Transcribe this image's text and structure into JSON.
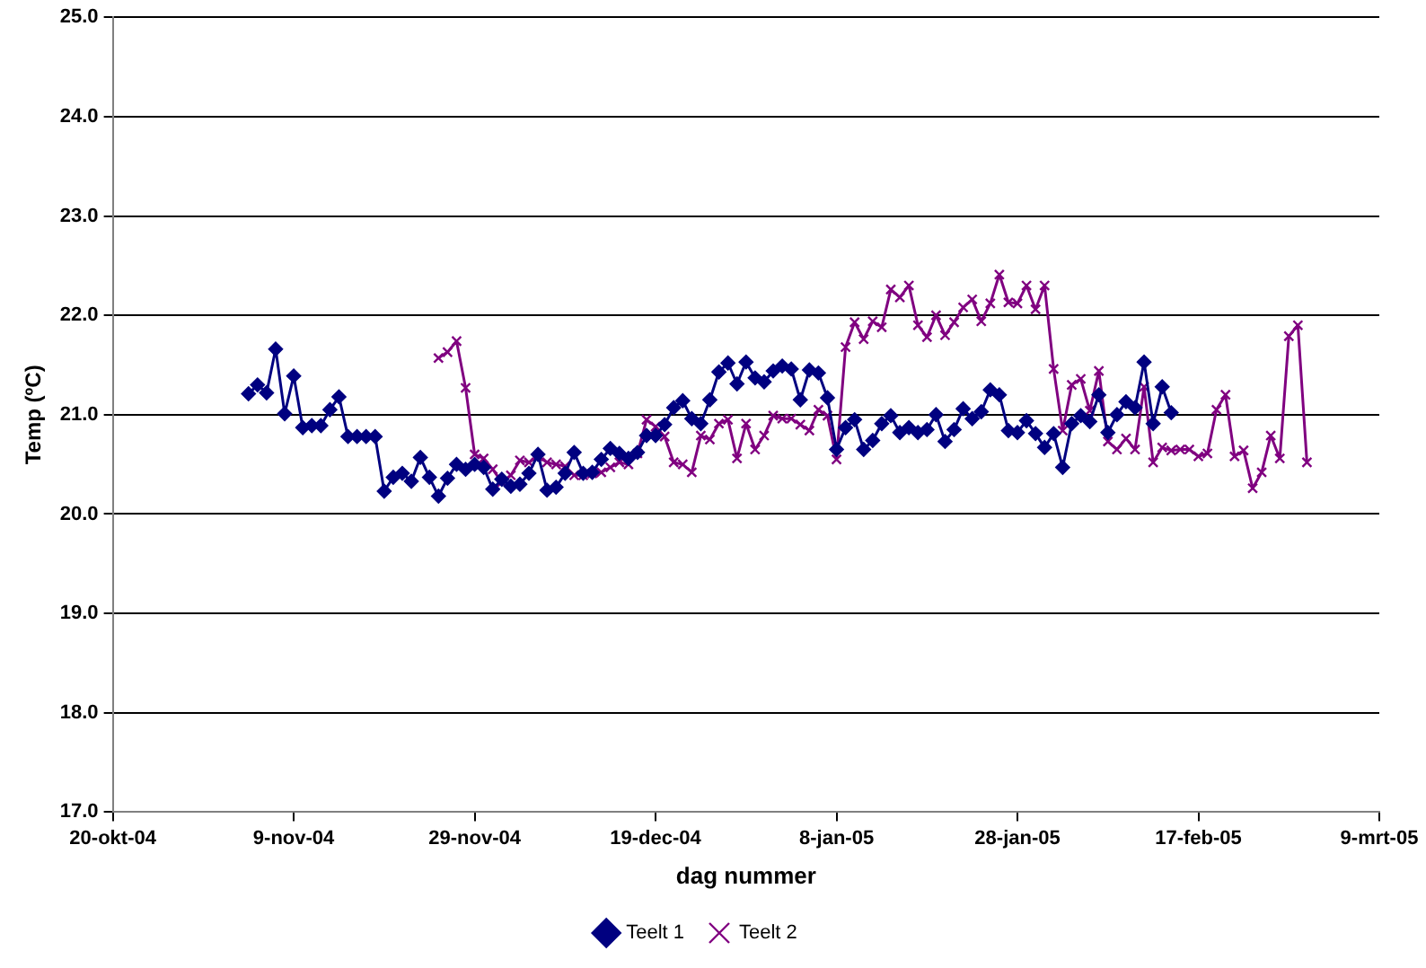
{
  "chart_data": {
    "type": "line",
    "xlabel": "dag nummer",
    "ylabel": "Temp (ºC)",
    "xlim": [
      "2004-10-20",
      "2005-03-09"
    ],
    "xticks": [
      {
        "value": "2004-10-20",
        "label": "20-okt-04"
      },
      {
        "value": "2004-11-09",
        "label": "9-nov-04"
      },
      {
        "value": "2004-11-29",
        "label": "29-nov-04"
      },
      {
        "value": "2004-12-19",
        "label": "19-dec-04"
      },
      {
        "value": "2005-01-08",
        "label": "8-jan-05"
      },
      {
        "value": "2005-01-28",
        "label": "28-jan-05"
      },
      {
        "value": "2005-02-17",
        "label": "17-feb-05"
      },
      {
        "value": "2005-03-09",
        "label": "9-mrt-05"
      }
    ],
    "ylim": [
      17,
      25
    ],
    "yticks": [
      {
        "value": 17,
        "label": "17.0"
      },
      {
        "value": 18,
        "label": "18.0"
      },
      {
        "value": 19,
        "label": "19.0"
      },
      {
        "value": 20,
        "label": "20.0"
      },
      {
        "value": 21,
        "label": "21.0"
      },
      {
        "value": 22,
        "label": "22.0"
      },
      {
        "value": 23,
        "label": "23.0"
      },
      {
        "value": 24,
        "label": "24.0"
      },
      {
        "value": 25,
        "label": "25.0"
      }
    ],
    "grid": "y",
    "legend": "bottom",
    "line_style": "solid",
    "series": [
      {
        "name": "Teelt 1",
        "color": "#000080",
        "marker": "diamond",
        "x": [
          "2004-11-04",
          "2004-11-05",
          "2004-11-06",
          "2004-11-07",
          "2004-11-08",
          "2004-11-09",
          "2004-11-10",
          "2004-11-11",
          "2004-11-12",
          "2004-11-13",
          "2004-11-14",
          "2004-11-15",
          "2004-11-16",
          "2004-11-17",
          "2004-11-18",
          "2004-11-19",
          "2004-11-20",
          "2004-11-21",
          "2004-11-22",
          "2004-11-23",
          "2004-11-24",
          "2004-11-25",
          "2004-11-26",
          "2004-11-27",
          "2004-11-28",
          "2004-11-29",
          "2004-11-30",
          "2004-12-01",
          "2004-12-02",
          "2004-12-03",
          "2004-12-04",
          "2004-12-05",
          "2004-12-06",
          "2004-12-07",
          "2004-12-08",
          "2004-12-09",
          "2004-12-10",
          "2004-12-11",
          "2004-12-12",
          "2004-12-13",
          "2004-12-14",
          "2004-12-15",
          "2004-12-16",
          "2004-12-17",
          "2004-12-18",
          "2004-12-19",
          "2004-12-20",
          "2004-12-21",
          "2004-12-22",
          "2004-12-23",
          "2004-12-24",
          "2004-12-25",
          "2004-12-26",
          "2004-12-27",
          "2004-12-28",
          "2004-12-29",
          "2004-12-30",
          "2004-12-31",
          "2005-01-01",
          "2005-01-02",
          "2005-01-03",
          "2005-01-04",
          "2005-01-05",
          "2005-01-06",
          "2005-01-07",
          "2005-01-08",
          "2005-01-09",
          "2005-01-10",
          "2005-01-11",
          "2005-01-12",
          "2005-01-13",
          "2005-01-14",
          "2005-01-15",
          "2005-01-16",
          "2005-01-17",
          "2005-01-18",
          "2005-01-19",
          "2005-01-20",
          "2005-01-21",
          "2005-01-22",
          "2005-01-23",
          "2005-01-24",
          "2005-01-25",
          "2005-01-26",
          "2005-01-27",
          "2005-01-28",
          "2005-01-29",
          "2005-01-30",
          "2005-01-31",
          "2005-02-01",
          "2005-02-02",
          "2005-02-03",
          "2005-02-04",
          "2005-02-05",
          "2005-02-06",
          "2005-02-07",
          "2005-02-08",
          "2005-02-09",
          "2005-02-10",
          "2005-02-11",
          "2005-02-12",
          "2005-02-13",
          "2005-02-14"
        ],
        "values": [
          21.21,
          21.3,
          21.22,
          21.66,
          21.01,
          21.39,
          20.87,
          20.89,
          20.89,
          21.05,
          21.18,
          20.78,
          20.78,
          20.78,
          20.78,
          20.23,
          20.37,
          20.41,
          20.33,
          20.57,
          20.37,
          20.18,
          20.36,
          20.5,
          20.45,
          20.5,
          20.47,
          20.25,
          20.35,
          20.28,
          20.3,
          20.41,
          20.6,
          20.24,
          20.27,
          20.41,
          20.62,
          20.41,
          20.42,
          20.55,
          20.66,
          20.61,
          20.56,
          20.62,
          20.79,
          20.79,
          20.9,
          21.07,
          21.14,
          20.96,
          20.91,
          21.15,
          21.43,
          21.52,
          21.31,
          21.53,
          21.37,
          21.33,
          21.44,
          21.49,
          21.46,
          21.15,
          21.45,
          21.42,
          21.17,
          20.65,
          20.87,
          20.95,
          20.65,
          20.74,
          20.91,
          20.99,
          20.82,
          20.87,
          20.82,
          20.85,
          21.0,
          20.73,
          20.85,
          21.06,
          20.96,
          21.03,
          21.25,
          21.2,
          20.84,
          20.82,
          20.94,
          20.81,
          20.67,
          20.81,
          20.47,
          20.91,
          20.99,
          20.93,
          21.2,
          20.82,
          21.0,
          21.13,
          21.07,
          21.53,
          20.91,
          21.28,
          21.02
        ]
      },
      {
        "name": "Teelt 2",
        "color": "#800080",
        "marker": "cross",
        "x": [
          "2004-11-25",
          "2004-11-26",
          "2004-11-27",
          "2004-11-28",
          "2004-11-29",
          "2004-11-30",
          "2004-12-01",
          "2004-12-02",
          "2004-12-03",
          "2004-12-04",
          "2004-12-05",
          "2004-12-06",
          "2004-12-07",
          "2004-12-08",
          "2004-12-09",
          "2004-12-10",
          "2004-12-11",
          "2004-12-12",
          "2004-12-13",
          "2004-12-14",
          "2004-12-15",
          "2004-12-16",
          "2004-12-17",
          "2004-12-18",
          "2004-12-19",
          "2004-12-20",
          "2004-12-21",
          "2004-12-22",
          "2004-12-23",
          "2004-12-24",
          "2004-12-25",
          "2004-12-26",
          "2004-12-27",
          "2004-12-28",
          "2004-12-29",
          "2004-12-30",
          "2004-12-31",
          "2005-01-01",
          "2005-01-02",
          "2005-01-03",
          "2005-01-04",
          "2005-01-05",
          "2005-01-06",
          "2005-01-07",
          "2005-01-08",
          "2005-01-09",
          "2005-01-10",
          "2005-01-11",
          "2005-01-12",
          "2005-01-13",
          "2005-01-14",
          "2005-01-15",
          "2005-01-16",
          "2005-01-17",
          "2005-01-18",
          "2005-01-19",
          "2005-01-20",
          "2005-01-21",
          "2005-01-22",
          "2005-01-23",
          "2005-01-24",
          "2005-01-25",
          "2005-01-26",
          "2005-01-27",
          "2005-01-28",
          "2005-01-29",
          "2005-01-30",
          "2005-01-31",
          "2005-02-01",
          "2005-02-02",
          "2005-02-03",
          "2005-02-04",
          "2005-02-05",
          "2005-02-06",
          "2005-02-07",
          "2005-02-08",
          "2005-02-09",
          "2005-02-10",
          "2005-02-11",
          "2005-02-12",
          "2005-02-13",
          "2005-02-14",
          "2005-02-15",
          "2005-02-16",
          "2005-02-17",
          "2005-02-18",
          "2005-02-19",
          "2005-02-20",
          "2005-02-21",
          "2005-02-22",
          "2005-02-23",
          "2005-02-24",
          "2005-02-25",
          "2005-02-26",
          "2005-02-27",
          "2005-02-28",
          "2005-03-01"
        ],
        "values": [
          21.57,
          21.63,
          21.74,
          21.27,
          20.6,
          20.56,
          20.45,
          20.32,
          20.39,
          20.54,
          20.52,
          20.58,
          20.52,
          20.5,
          20.48,
          20.39,
          20.39,
          20.41,
          20.42,
          20.47,
          20.52,
          20.5,
          20.61,
          20.95,
          20.88,
          20.78,
          20.52,
          20.5,
          20.42,
          20.79,
          20.75,
          20.91,
          20.95,
          20.56,
          20.91,
          20.65,
          20.79,
          20.99,
          20.96,
          20.96,
          20.9,
          20.84,
          21.05,
          20.99,
          20.55,
          21.68,
          21.93,
          21.76,
          21.94,
          21.88,
          22.26,
          22.18,
          22.3,
          21.9,
          21.78,
          22.0,
          21.8,
          21.93,
          22.08,
          22.16,
          21.94,
          22.12,
          22.41,
          22.13,
          22.12,
          22.3,
          22.06,
          22.3,
          21.46,
          20.84,
          21.3,
          21.36,
          21.04,
          21.44,
          20.73,
          20.65,
          20.76,
          20.65,
          21.28,
          20.52,
          20.67,
          20.64,
          20.65,
          20.65,
          20.58,
          20.61,
          21.05,
          21.2,
          20.58,
          20.64,
          20.26,
          20.42,
          20.79,
          20.56,
          21.79,
          21.9,
          20.52
        ]
      }
    ]
  }
}
